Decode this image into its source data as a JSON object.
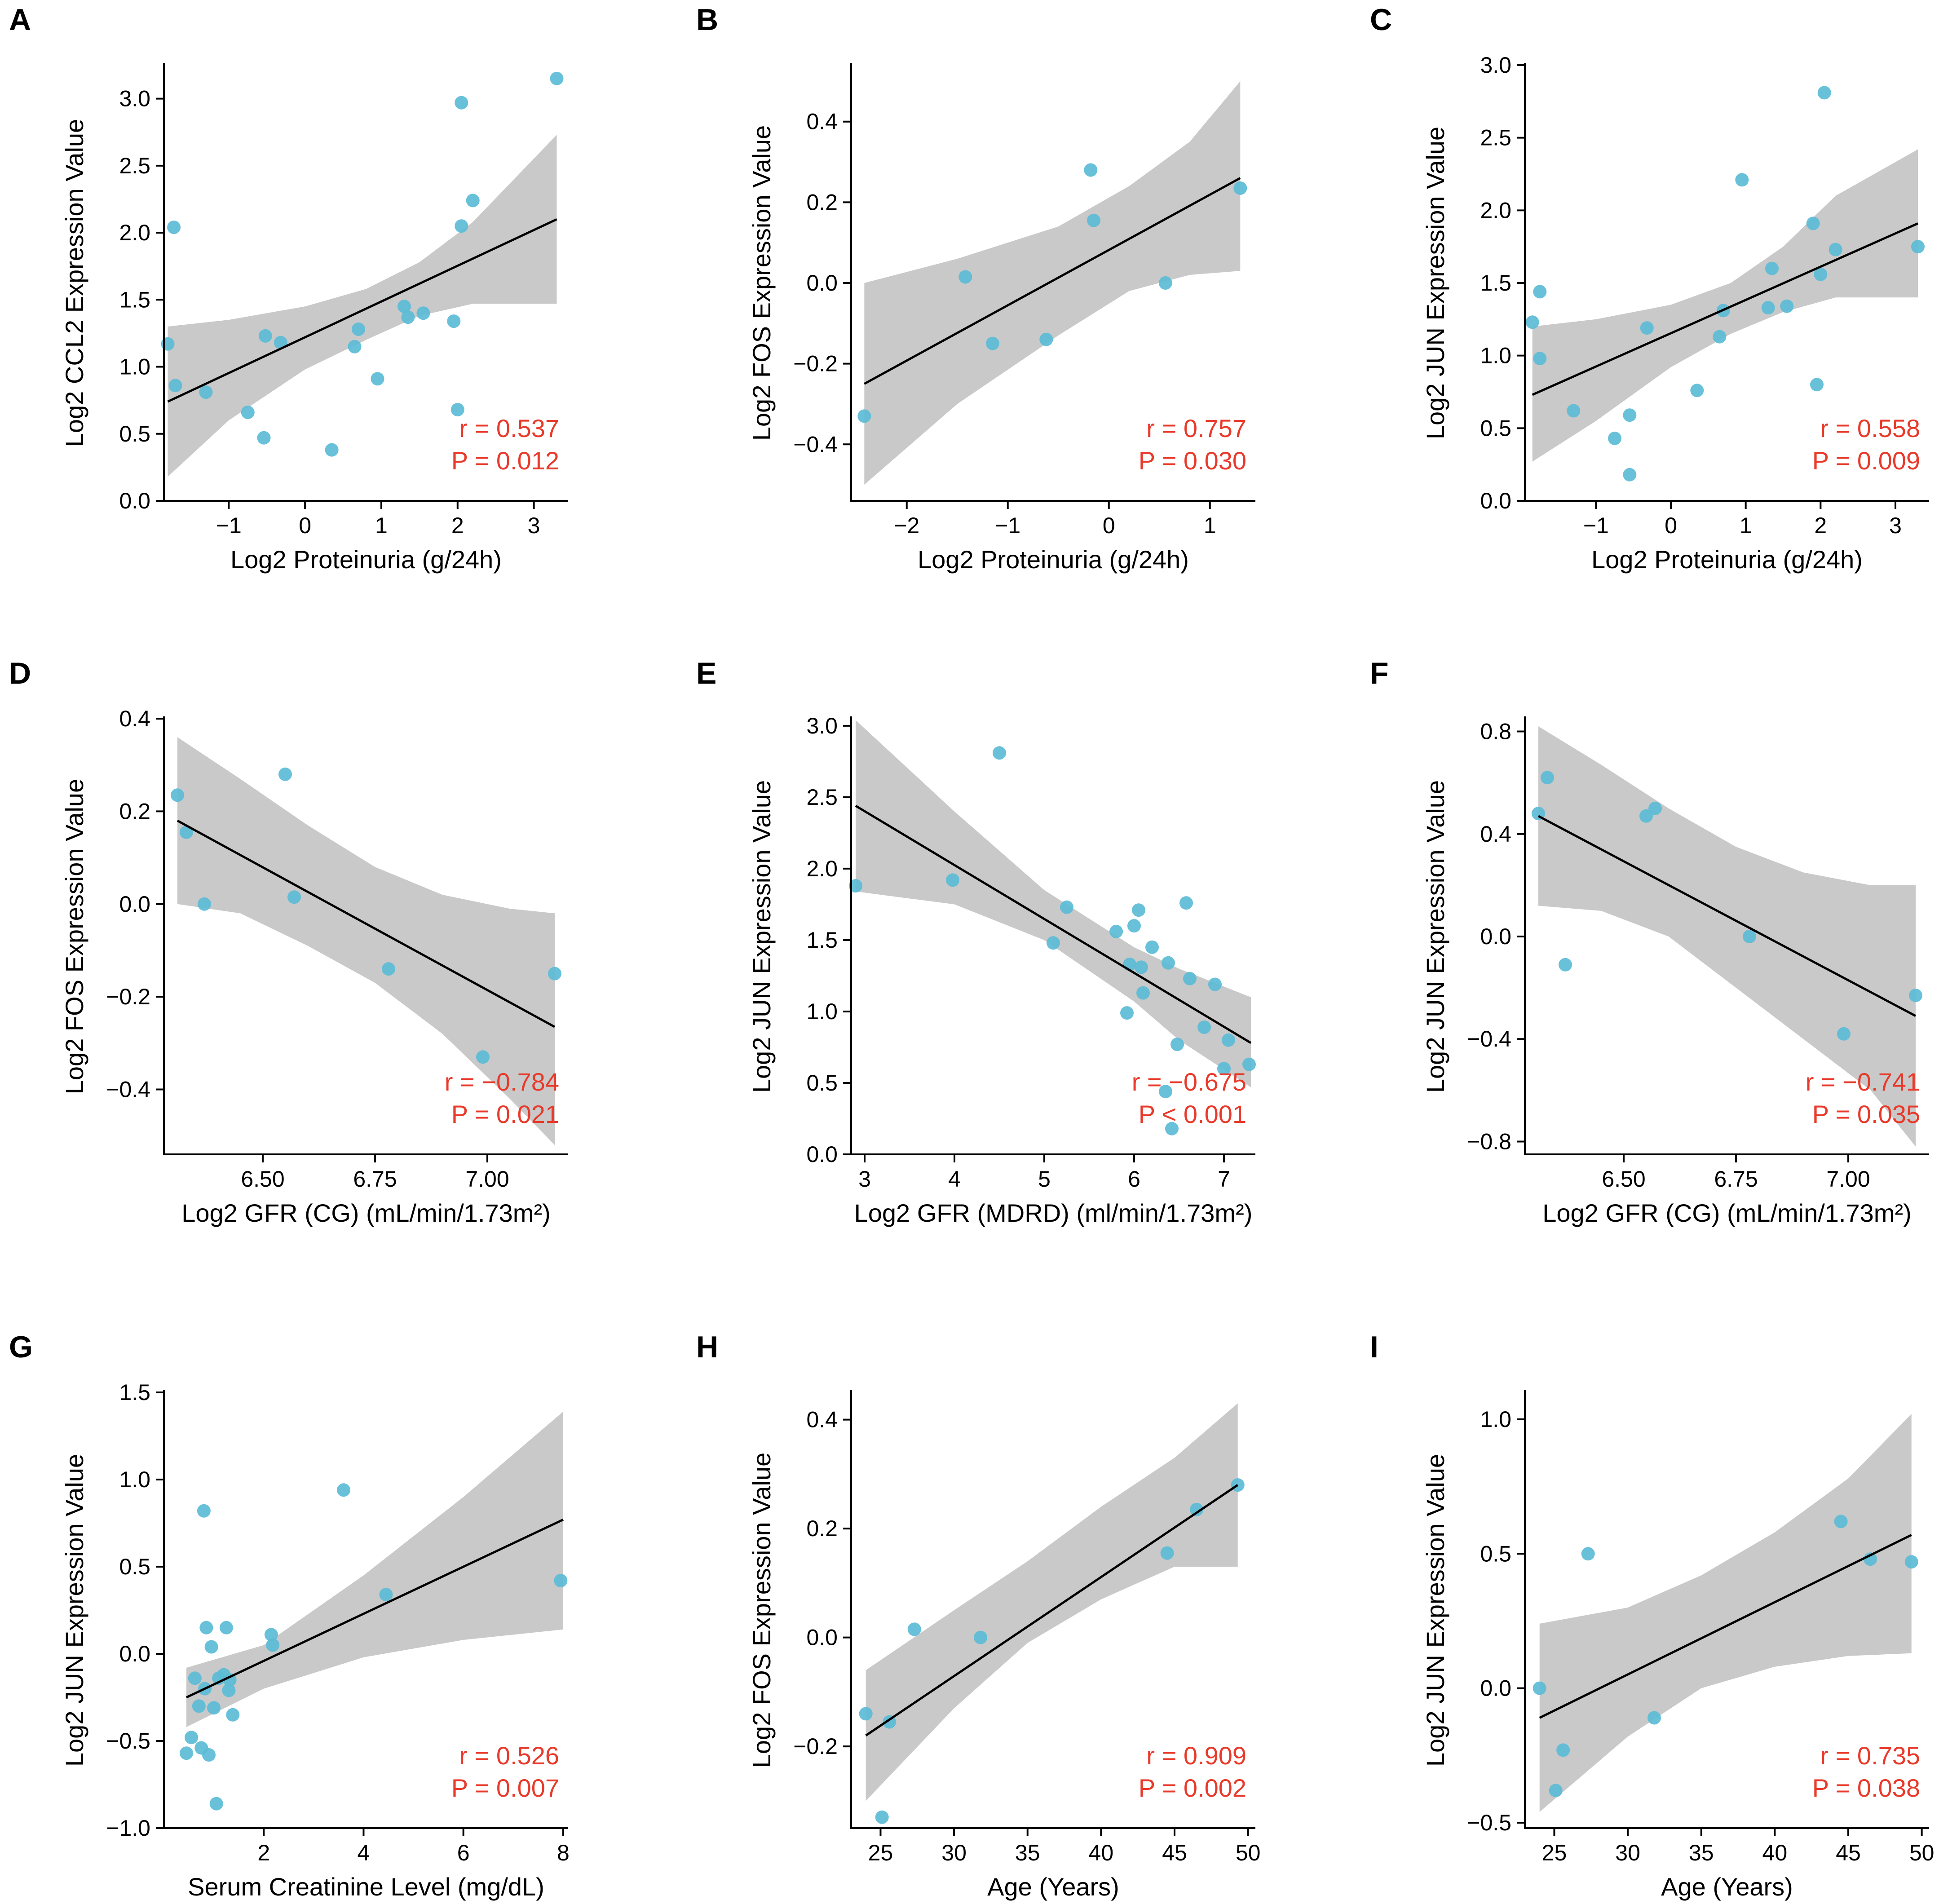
{
  "figure_colors": {
    "point": "#5bbcd6",
    "ci_band": "#c9c9c9",
    "fit_line": "#000000",
    "stats": "#e8392a"
  },
  "chart_data": [
    {
      "type": "scatter",
      "panel": "A",
      "xlabel": "Log2 Proteinuria (g/24h)",
      "ylabel": "Log2 CCL2 Expression Value",
      "xlim": [
        -1.85,
        3.45
      ],
      "ylim": [
        0,
        3.25
      ],
      "xticks": [
        -1,
        0,
        1,
        2,
        3
      ],
      "xtick_labels": [
        "−1",
        "0",
        "1",
        "2",
        "3"
      ],
      "yticks": [
        0,
        0.5,
        1,
        1.5,
        2,
        2.5,
        3
      ],
      "ytick_labels": [
        "0.0",
        "0.5",
        "1.0",
        "1.5",
        "2.0",
        "2.5",
        "3.0"
      ],
      "x": [
        -1.8,
        -1.7,
        -1.72,
        -1.3,
        -0.75,
        -0.52,
        -0.32,
        -0.54,
        0.35,
        0.65,
        0.7,
        0.95,
        1.3,
        1.35,
        1.55,
        1.95,
        2.0,
        2.05,
        2.05,
        2.2,
        3.3
      ],
      "y": [
        1.17,
        0.86,
        2.04,
        0.81,
        0.66,
        1.23,
        1.18,
        0.47,
        0.38,
        1.15,
        1.28,
        0.91,
        1.45,
        1.37,
        1.4,
        1.34,
        0.68,
        2.05,
        2.97,
        2.24,
        3.15
      ],
      "fit": [
        [
          -1.8,
          0.74
        ],
        [
          3.3,
          2.1
        ]
      ],
      "ci_upper": [
        [
          -1.8,
          1.3
        ],
        [
          -1.0,
          1.35
        ],
        [
          0.0,
          1.45
        ],
        [
          0.8,
          1.58
        ],
        [
          1.5,
          1.78
        ],
        [
          2.2,
          2.08
        ],
        [
          3.3,
          2.73
        ]
      ],
      "ci_lower": [
        [
          -1.8,
          0.18
        ],
        [
          -1.0,
          0.6
        ],
        [
          0.0,
          0.98
        ],
        [
          0.8,
          1.2
        ],
        [
          1.5,
          1.38
        ],
        [
          2.2,
          1.47
        ],
        [
          3.3,
          1.47
        ]
      ],
      "r_text": "r = 0.537",
      "p_text": "P = 0.012"
    },
    {
      "type": "scatter",
      "panel": "B",
      "xlabel": "Log2 Proteinuria (g/24h)",
      "ylabel": "Log2 FOS Expression Value",
      "xlim": [
        -2.55,
        1.45
      ],
      "ylim": [
        -0.54,
        0.54
      ],
      "xticks": [
        -2,
        -1,
        0,
        1
      ],
      "xtick_labels": [
        "−2",
        "−1",
        "0",
        "1"
      ],
      "yticks": [
        -0.4,
        -0.2,
        0,
        0.2,
        0.4
      ],
      "ytick_labels": [
        "−0.4",
        "−0.2",
        "0.0",
        "0.2",
        "0.4"
      ],
      "x": [
        -2.42,
        -1.42,
        -1.15,
        -0.62,
        -0.18,
        -0.15,
        0.56,
        1.3
      ],
      "y": [
        -0.33,
        0.015,
        -0.15,
        -0.14,
        0.28,
        0.155,
        0.0,
        0.235
      ],
      "fit": [
        [
          -2.42,
          -0.25
        ],
        [
          1.3,
          0.26
        ]
      ],
      "ci_upper": [
        [
          -2.42,
          0.0
        ],
        [
          -1.5,
          0.06
        ],
        [
          -0.5,
          0.14
        ],
        [
          0.2,
          0.24
        ],
        [
          0.8,
          0.35
        ],
        [
          1.3,
          0.5
        ]
      ],
      "ci_lower": [
        [
          -2.42,
          -0.5
        ],
        [
          -1.5,
          -0.3
        ],
        [
          -0.5,
          -0.13
        ],
        [
          0.2,
          -0.02
        ],
        [
          0.8,
          0.02
        ],
        [
          1.3,
          0.03
        ]
      ],
      "r_text": "r = 0.757",
      "p_text": "P = 0.030"
    },
    {
      "type": "scatter",
      "panel": "C",
      "xlabel": "Log2 Proteinuria (g/24h)",
      "ylabel": "Log2 JUN Expression Value",
      "xlim": [
        -1.95,
        3.45
      ],
      "ylim": [
        0,
        3.0
      ],
      "xticks": [
        -1,
        0,
        1,
        2,
        3
      ],
      "xtick_labels": [
        "−1",
        "0",
        "1",
        "2",
        "3"
      ],
      "yticks": [
        0,
        0.5,
        1,
        1.5,
        2,
        2.5,
        3
      ],
      "ytick_labels": [
        "0.0",
        "0.5",
        "1.0",
        "1.5",
        "2.0",
        "2.5",
        "3.0"
      ],
      "x": [
        -1.85,
        -1.75,
        -1.75,
        -1.3,
        -0.75,
        -0.55,
        -0.55,
        -0.32,
        0.35,
        0.65,
        0.7,
        0.95,
        1.3,
        1.35,
        1.55,
        1.9,
        1.95,
        2.0,
        2.05,
        2.2,
        3.3
      ],
      "y": [
        1.23,
        1.44,
        0.98,
        0.62,
        0.43,
        0.59,
        0.18,
        1.19,
        0.76,
        1.13,
        1.31,
        2.21,
        1.33,
        1.6,
        1.34,
        1.91,
        0.8,
        1.56,
        2.81,
        1.73,
        1.75
      ],
      "fit": [
        [
          -1.85,
          0.73
        ],
        [
          3.3,
          1.91
        ]
      ],
      "ci_upper": [
        [
          -1.85,
          1.2
        ],
        [
          -1.0,
          1.25
        ],
        [
          0.0,
          1.35
        ],
        [
          0.8,
          1.5
        ],
        [
          1.5,
          1.75
        ],
        [
          2.2,
          2.1
        ],
        [
          3.3,
          2.42
        ]
      ],
      "ci_lower": [
        [
          -1.85,
          0.27
        ],
        [
          -1.0,
          0.55
        ],
        [
          0.0,
          0.92
        ],
        [
          0.8,
          1.15
        ],
        [
          1.5,
          1.3
        ],
        [
          2.2,
          1.4
        ],
        [
          3.3,
          1.4
        ]
      ],
      "r_text": "r = 0.558",
      "p_text": "P = 0.009"
    },
    {
      "type": "scatter",
      "panel": "D",
      "xlabel": "Log2 GFR (CG)  (mL/min/1.73m²)",
      "ylabel": "Log2 FOS Expression Value",
      "xlim": [
        6.28,
        7.18
      ],
      "ylim": [
        -0.54,
        0.4
      ],
      "xticks": [
        6.5,
        6.75,
        7.0
      ],
      "xtick_labels": [
        "6.50",
        "6.75",
        "7.00"
      ],
      "yticks": [
        -0.4,
        -0.2,
        0,
        0.2,
        0.4
      ],
      "ytick_labels": [
        "−0.4",
        "−0.2",
        "0.0",
        "0.2",
        "0.4"
      ],
      "x": [
        6.31,
        6.33,
        6.37,
        6.55,
        6.57,
        6.78,
        6.99,
        7.15
      ],
      "y": [
        0.235,
        0.155,
        0.0,
        0.28,
        0.015,
        -0.14,
        -0.33,
        -0.15
      ],
      "fit": [
        [
          6.31,
          0.18
        ],
        [
          7.15,
          -0.265
        ]
      ],
      "ci_upper": [
        [
          6.31,
          0.36
        ],
        [
          6.45,
          0.27
        ],
        [
          6.6,
          0.17
        ],
        [
          6.75,
          0.08
        ],
        [
          6.9,
          0.02
        ],
        [
          7.05,
          -0.01
        ],
        [
          7.15,
          -0.02
        ]
      ],
      "ci_lower": [
        [
          6.31,
          0.0
        ],
        [
          6.45,
          -0.02
        ],
        [
          6.6,
          -0.09
        ],
        [
          6.75,
          -0.17
        ],
        [
          6.9,
          -0.28
        ],
        [
          7.05,
          -0.42
        ],
        [
          7.15,
          -0.52
        ]
      ],
      "r_text": "r = −0.784",
      "p_text": "P = 0.021"
    },
    {
      "type": "scatter",
      "panel": "E",
      "xlabel": "Log2 GFR (MDRD) (ml/min/1.73m²)",
      "ylabel": "Log2 JUN Expression Value",
      "xlim": [
        2.85,
        7.35
      ],
      "ylim": [
        0,
        3.05
      ],
      "xticks": [
        3,
        4,
        5,
        6,
        7
      ],
      "xtick_labels": [
        "3",
        "4",
        "5",
        "6",
        "7"
      ],
      "yticks": [
        0,
        0.5,
        1,
        1.5,
        2,
        2.5,
        3
      ],
      "ytick_labels": [
        "0.0",
        "0.5",
        "1.0",
        "1.5",
        "2.0",
        "2.5",
        "3.0"
      ],
      "x": [
        2.9,
        3.98,
        4.5,
        5.1,
        5.25,
        5.8,
        5.92,
        5.95,
        6.0,
        6.05,
        6.08,
        6.1,
        6.2,
        6.35,
        6.38,
        6.42,
        6.48,
        6.58,
        6.62,
        6.78,
        6.9,
        7.0,
        7.05,
        7.28
      ],
      "y": [
        1.88,
        1.92,
        2.81,
        1.48,
        1.73,
        1.56,
        0.99,
        1.33,
        1.6,
        1.71,
        1.31,
        1.13,
        1.45,
        0.44,
        1.34,
        0.18,
        0.77,
        1.76,
        1.23,
        0.89,
        1.19,
        0.6,
        0.8,
        0.63
      ],
      "fit": [
        [
          2.9,
          2.44
        ],
        [
          7.3,
          0.78
        ]
      ],
      "ci_upper": [
        [
          2.9,
          3.04
        ],
        [
          4.0,
          2.4
        ],
        [
          5.0,
          1.85
        ],
        [
          6.0,
          1.45
        ],
        [
          6.5,
          1.3
        ],
        [
          7.3,
          1.1
        ]
      ],
      "ci_lower": [
        [
          2.9,
          1.84
        ],
        [
          4.0,
          1.75
        ],
        [
          5.0,
          1.5
        ],
        [
          6.0,
          1.07
        ],
        [
          6.5,
          0.8
        ],
        [
          7.3,
          0.47
        ]
      ],
      "r_text": "r = −0.675",
      "p_text": "P < 0.001"
    },
    {
      "type": "scatter",
      "panel": "F",
      "xlabel": "Log2 GFR (CG) (mL/min/1.73m²)",
      "ylabel": "Log2 JUN Expression Value",
      "xlim": [
        6.28,
        7.18
      ],
      "ylim": [
        -0.85,
        0.85
      ],
      "xticks": [
        6.5,
        6.75,
        7.0
      ],
      "xtick_labels": [
        "6.50",
        "6.75",
        "7.00"
      ],
      "yticks": [
        -0.8,
        -0.4,
        0,
        0.4,
        0.8
      ],
      "ytick_labels": [
        "−0.8",
        "−0.4",
        "0.0",
        "0.4",
        "0.8"
      ],
      "x": [
        6.31,
        6.33,
        6.37,
        6.55,
        6.57,
        6.78,
        6.99,
        7.15
      ],
      "y": [
        0.48,
        0.62,
        -0.11,
        0.47,
        0.5,
        0.0,
        -0.38,
        -0.23
      ],
      "fit": [
        [
          6.31,
          0.47
        ],
        [
          7.15,
          -0.31
        ]
      ],
      "ci_upper": [
        [
          6.31,
          0.82
        ],
        [
          6.45,
          0.67
        ],
        [
          6.6,
          0.5
        ],
        [
          6.75,
          0.35
        ],
        [
          6.9,
          0.25
        ],
        [
          7.05,
          0.2
        ],
        [
          7.15,
          0.2
        ]
      ],
      "ci_lower": [
        [
          6.31,
          0.12
        ],
        [
          6.45,
          0.1
        ],
        [
          6.6,
          0.0
        ],
        [
          6.75,
          -0.2
        ],
        [
          6.9,
          -0.4
        ],
        [
          7.05,
          -0.6
        ],
        [
          7.15,
          -0.82
        ]
      ],
      "r_text": "r = −0.741",
      "p_text": "P = 0.035"
    },
    {
      "type": "scatter",
      "panel": "G",
      "xlabel": "Serum Creatinine Level (mg/dL)",
      "ylabel": "Log2 JUN Expression Value",
      "xlim": [
        0.0,
        8.1
      ],
      "ylim": [
        -1.0,
        1.5
      ],
      "xticks": [
        2,
        4,
        6,
        8
      ],
      "xtick_labels": [
        "2",
        "4",
        "6",
        "8"
      ],
      "yticks": [
        -1,
        -0.5,
        0,
        0.5,
        1,
        1.5
      ],
      "ytick_labels": [
        "−1.0",
        "−0.5",
        "0.0",
        "0.5",
        "1.0",
        "1.5"
      ],
      "x": [
        0.45,
        0.55,
        0.62,
        0.7,
        0.75,
        0.8,
        0.82,
        0.85,
        0.9,
        0.95,
        1.0,
        1.05,
        1.1,
        1.2,
        1.25,
        1.3,
        1.32,
        1.38,
        2.15,
        2.18,
        3.6,
        4.45,
        7.95
      ],
      "y": [
        -0.57,
        -0.48,
        -0.14,
        -0.3,
        -0.54,
        0.82,
        -0.2,
        0.15,
        -0.58,
        0.04,
        -0.31,
        -0.86,
        -0.14,
        -0.12,
        0.15,
        -0.21,
        -0.15,
        -0.35,
        0.11,
        0.05,
        0.94,
        0.34,
        0.42
      ],
      "fit": [
        [
          0.45,
          -0.25
        ],
        [
          8.0,
          0.77
        ]
      ],
      "ci_upper": [
        [
          0.45,
          -0.08
        ],
        [
          2.0,
          0.05
        ],
        [
          4.0,
          0.45
        ],
        [
          6.0,
          0.9
        ],
        [
          8.0,
          1.39
        ]
      ],
      "ci_lower": [
        [
          0.45,
          -0.42
        ],
        [
          2.0,
          -0.2
        ],
        [
          4.0,
          -0.02
        ],
        [
          6.0,
          0.08
        ],
        [
          8.0,
          0.14
        ]
      ],
      "r_text": "r = 0.526",
      "p_text": "P = 0.007"
    },
    {
      "type": "scatter",
      "panel": "H",
      "xlabel": "Age (Years)",
      "ylabel": "Log2 FOS Expression Value",
      "xlim": [
        23.0,
        50.5
      ],
      "ylim": [
        -0.35,
        0.45
      ],
      "xticks": [
        25,
        30,
        35,
        40,
        45,
        50
      ],
      "xtick_labels": [
        "25",
        "30",
        "35",
        "40",
        "45",
        "50"
      ],
      "yticks": [
        -0.2,
        0,
        0.2,
        0.4
      ],
      "ytick_labels": [
        "−0.2",
        "0.0",
        "0.2",
        "0.4"
      ],
      "x": [
        24,
        25.1,
        25.6,
        27.3,
        31.8,
        44.5,
        46.5,
        49.3
      ],
      "y": [
        -0.14,
        -0.33,
        -0.155,
        0.015,
        0.0,
        0.155,
        0.235,
        0.28
      ],
      "fit": [
        [
          24,
          -0.18
        ],
        [
          49.3,
          0.28
        ]
      ],
      "ci_upper": [
        [
          24,
          -0.06
        ],
        [
          30,
          0.05
        ],
        [
          35,
          0.14
        ],
        [
          40,
          0.24
        ],
        [
          45,
          0.33
        ],
        [
          49.3,
          0.43
        ]
      ],
      "ci_lower": [
        [
          24,
          -0.3
        ],
        [
          30,
          -0.13
        ],
        [
          35,
          -0.01
        ],
        [
          40,
          0.07
        ],
        [
          45,
          0.13
        ],
        [
          49.3,
          0.13
        ]
      ],
      "r_text": "r = 0.909",
      "p_text": "P = 0.002"
    },
    {
      "type": "scatter",
      "panel": "I",
      "xlabel": "Age (Years)",
      "ylabel": "Log2 JUN Expression Value",
      "xlim": [
        23.0,
        50.5
      ],
      "ylim": [
        -0.52,
        1.1
      ],
      "xticks": [
        25,
        30,
        35,
        40,
        45,
        50
      ],
      "xtick_labels": [
        "25",
        "30",
        "35",
        "40",
        "45",
        "50"
      ],
      "yticks": [
        -0.5,
        0,
        0.5,
        1
      ],
      "ytick_labels": [
        "−0.5",
        "0.0",
        "0.5",
        "1.0"
      ],
      "x": [
        24,
        25.1,
        25.6,
        27.3,
        31.8,
        44.5,
        46.5,
        49.3
      ],
      "y": [
        0.0,
        -0.38,
        -0.23,
        0.5,
        -0.11,
        0.62,
        0.48,
        0.47
      ],
      "fit": [
        [
          24,
          -0.11
        ],
        [
          49.3,
          0.57
        ]
      ],
      "ci_upper": [
        [
          24,
          0.24
        ],
        [
          30,
          0.3
        ],
        [
          35,
          0.42
        ],
        [
          40,
          0.58
        ],
        [
          45,
          0.78
        ],
        [
          49.3,
          1.02
        ]
      ],
      "ci_lower": [
        [
          24,
          -0.46
        ],
        [
          30,
          -0.18
        ],
        [
          35,
          0.0
        ],
        [
          40,
          0.08
        ],
        [
          45,
          0.12
        ],
        [
          49.3,
          0.13
        ]
      ],
      "r_text": "r = 0.735",
      "p_text": "P = 0.038"
    }
  ]
}
